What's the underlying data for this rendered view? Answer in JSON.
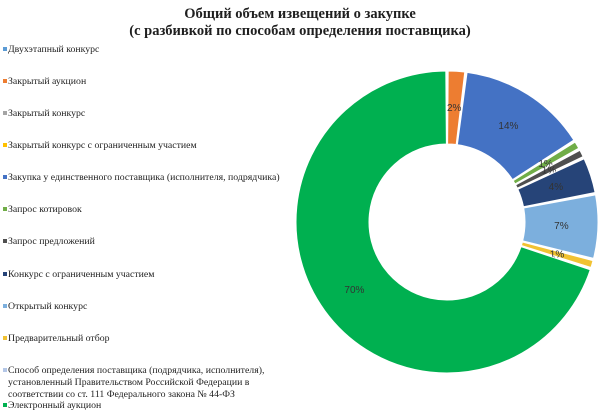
{
  "chart_data": {
    "type": "pie",
    "donut": true,
    "title_lines": [
      "Общий объем извещений о закупке",
      "(с разбивкой по способам определения поставщика)"
    ],
    "legend_position": "left",
    "slices": [
      {
        "label": "Двухэтапный конкурс",
        "value": 0,
        "display": "",
        "color": "#5b9bd5"
      },
      {
        "label": "Закрытый аукцион",
        "value": 2,
        "display": "2%",
        "color": "#ed7d31"
      },
      {
        "label": "Закрытый конкурс",
        "value": 0,
        "display": "",
        "color": "#a5a5a5"
      },
      {
        "label": "Закрытый конкурс  с ограниченным участием",
        "value": 0,
        "display": "",
        "color": "#ffc000"
      },
      {
        "label": "Закупка  у единственного поставщика (исполнителя, подрядчика)",
        "value": 14,
        "display": "14%",
        "color": "#4472c4"
      },
      {
        "label": "Запрос котировок",
        "value": 1,
        "display": "1%",
        "color": "#70ad47"
      },
      {
        "label": "Запрос предложений",
        "value": 1,
        "display": "1%",
        "color": "#4f4f4f"
      },
      {
        "label": "Конкурс  с ограниченным участием",
        "value": 4,
        "display": "4%",
        "color": "#264478"
      },
      {
        "label": "Открытый конкурс",
        "value": 7,
        "display": "7%",
        "color": "#7cafdd"
      },
      {
        "label": "Предварительный отбор",
        "value": 1,
        "display": "1%",
        "color": "#f1c232"
      },
      {
        "label": "Способ определения поставщика (подрядчика, исполнителя), установленный Правительством Российской Федерации в соответствии со ст. 111 Федерального закона № 44-ФЗ",
        "value": 0,
        "display": "",
        "color": "#b4c7e7"
      },
      {
        "label": "Электронный аукцион",
        "value": 70,
        "display": "70%",
        "color": "#00b050"
      }
    ]
  }
}
